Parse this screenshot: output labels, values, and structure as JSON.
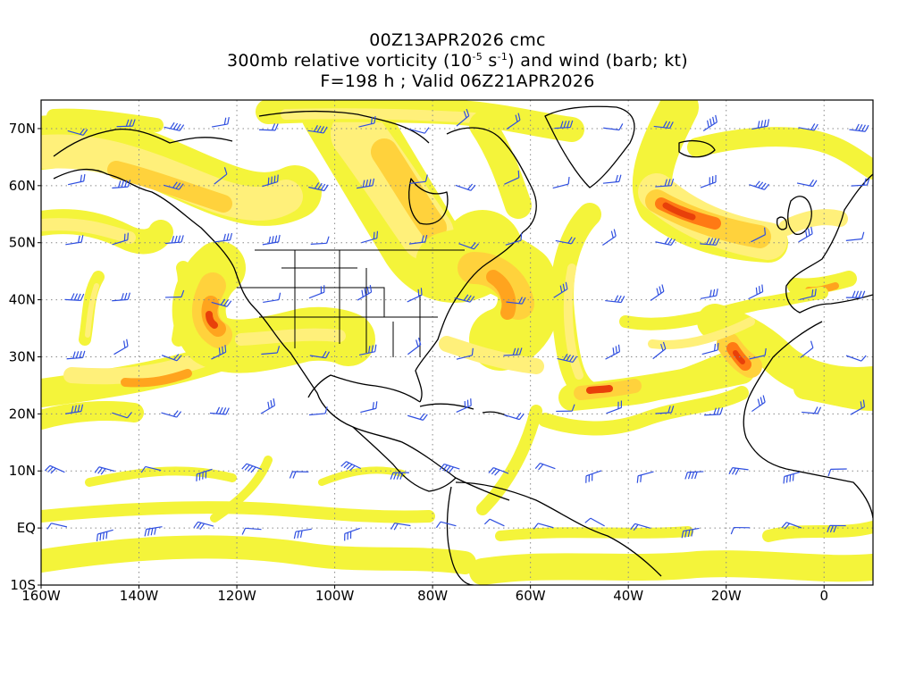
{
  "title": {
    "line1": "00Z13APR2026 cmc",
    "line2_part1": "300mb relative vorticity (10",
    "line2_sup1": "-5",
    "line2_part2": " s",
    "line2_sup2": "-1",
    "line2_part3": ") and wind (barb; kt)",
    "line3": "F=198 h ; Valid 06Z21APR2026"
  },
  "map": {
    "lon_range": [
      -160,
      10
    ],
    "lat_range": [
      -10,
      75
    ],
    "lat_ticks": [
      "70N",
      "60N",
      "50N",
      "40N",
      "30N",
      "20N",
      "10N",
      "EQ",
      "10S"
    ],
    "lon_ticks": [
      "160W",
      "140W",
      "120W",
      "100W",
      "80W",
      "60W",
      "40W",
      "20W",
      "0"
    ],
    "grid": "dotted",
    "colors": {
      "level1": "#f4f43a",
      "level2": "#fff07a",
      "level3": "#ffd23c",
      "level4": "#ffa41e",
      "level5": "#ff7a14",
      "level6": "#e8400a",
      "coastline": "#000000",
      "wind_barb": "#2f4fe0"
    }
  }
}
